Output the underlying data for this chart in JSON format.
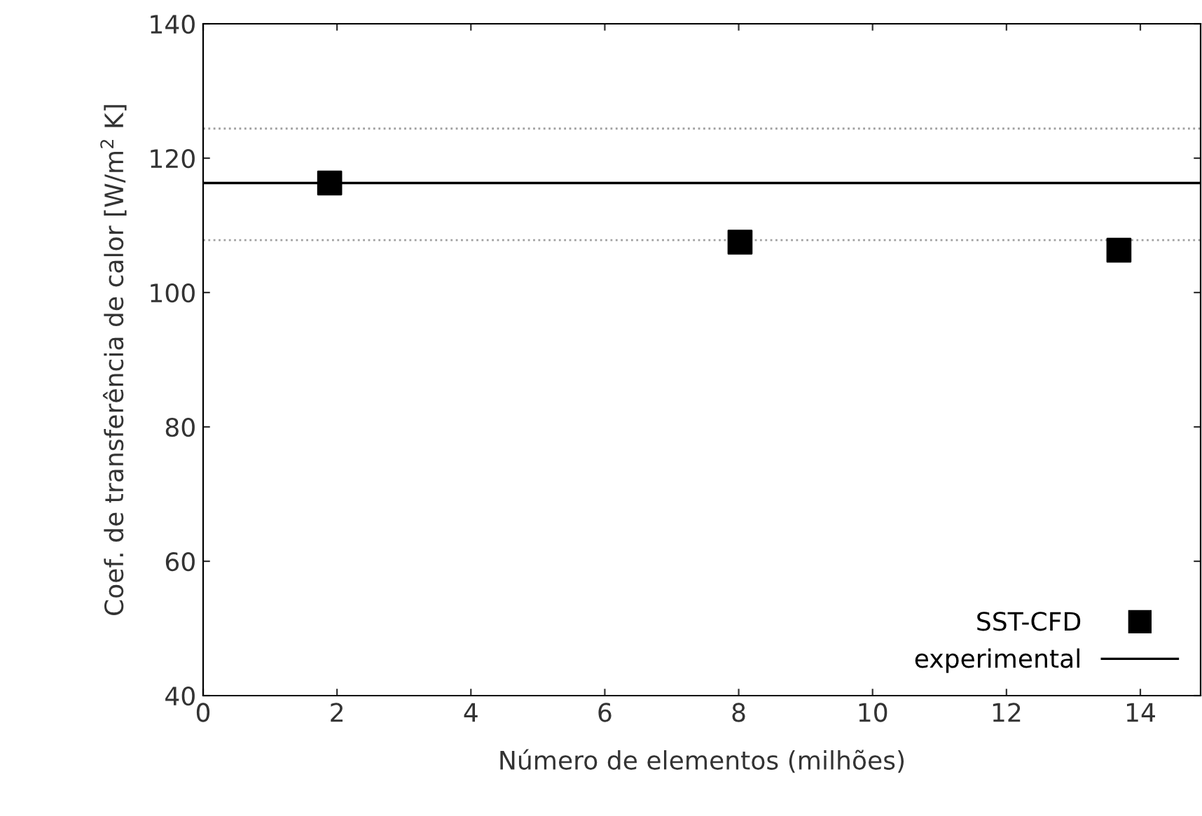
{
  "chart_data": {
    "type": "scatter",
    "xlabel": "Número de elementos (milhões)",
    "ylabel": "Coef. de transferência de calor [W/m$^{2}$ K]",
    "xlim": [
      0,
      14.9
    ],
    "xticks": [
      0,
      2,
      4,
      6,
      8,
      10,
      12,
      14
    ],
    "ylim": [
      40,
      140
    ],
    "yticks": [
      40,
      60,
      80,
      100,
      120,
      140
    ],
    "grid": false,
    "legend": "bottom right",
    "tick_labels": "xy",
    "series": [
      {
        "name": "SST-CFD",
        "marker": "square",
        "color": "#000000",
        "x": [
          1.89,
          8.02,
          13.68
        ],
        "values": [
          116.3,
          107.5,
          106.3
        ]
      },
      {
        "name": "experimental",
        "type": "line",
        "marker": "none",
        "color": "#000000",
        "x": [
          0,
          14.9
        ],
        "values": [
          116.3,
          116.3
        ]
      }
    ],
    "ref_lines": [
      {
        "axis": "y",
        "value": 124.4,
        "color": "#a0a0a0",
        "line_style": "dotted"
      },
      {
        "axis": "y",
        "value": 107.8,
        "color": "#a0a0a0",
        "line_style": "dotted"
      }
    ]
  }
}
